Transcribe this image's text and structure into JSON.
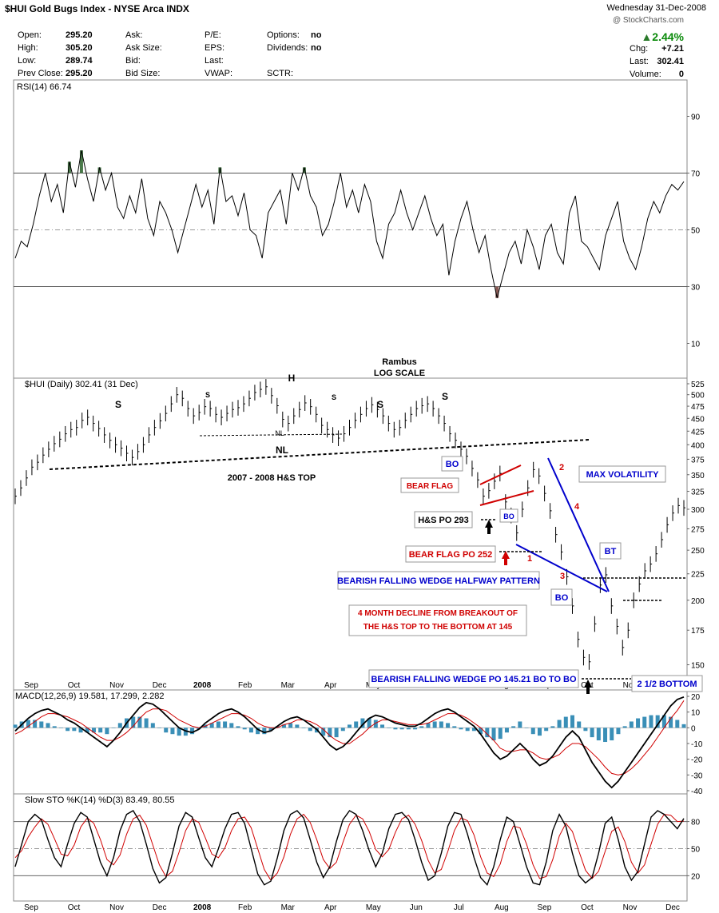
{
  "header": {
    "title": "$HUI Gold Bugs Index - NYSE Arca INDX",
    "date": "Wednesday 31-Dec-2008",
    "change_pct": "2.44%",
    "watermark": "@ StockCharts.com",
    "quote_rows": [
      [
        [
          "Open:",
          "295.20"
        ],
        [
          "Ask:",
          ""
        ],
        [
          "P/E:",
          ""
        ],
        [
          "Options:",
          "no"
        ]
      ],
      [
        [
          "High:",
          "305.20"
        ],
        [
          "Ask Size:",
          ""
        ],
        [
          "EPS:",
          ""
        ],
        [
          "Dividends:",
          "no"
        ]
      ],
      [
        [
          "Low:",
          "289.74"
        ],
        [
          "Bid:",
          ""
        ],
        [
          "Last:",
          ""
        ],
        [
          "",
          ""
        ]
      ],
      [
        [
          "Prev Close:",
          "295.20"
        ],
        [
          "Bid Size:",
          ""
        ],
        [
          "VWAP:",
          ""
        ],
        [
          "SCTR:",
          ""
        ]
      ]
    ],
    "right_rows": [
      [
        "Chg:",
        "+7.21"
      ],
      [
        "Last:",
        "302.41"
      ],
      [
        "Volume:",
        "0"
      ]
    ]
  },
  "chart_data": [
    {
      "type": "line",
      "panel": "rsi",
      "title": "RSI(14) 66.74",
      "ylim": [
        0,
        100
      ],
      "ticks": [
        10,
        30,
        50,
        70,
        90
      ],
      "reference_lines": [
        30,
        50,
        70
      ],
      "series": [
        {
          "name": "RSI(14)",
          "values": [
            40,
            46,
            44,
            52,
            62,
            70,
            60,
            66,
            56,
            74,
            65,
            78,
            68,
            60,
            72,
            64,
            70,
            58,
            54,
            62,
            56,
            68,
            54,
            48,
            60,
            56,
            50,
            42,
            50,
            58,
            66,
            58,
            64,
            52,
            72,
            60,
            62,
            55,
            63,
            50,
            48,
            40,
            56,
            60,
            64,
            52,
            70,
            64,
            72,
            62,
            58,
            48,
            52,
            60,
            70,
            58,
            64,
            56,
            66,
            60,
            46,
            40,
            52,
            56,
            64,
            56,
            50,
            56,
            62,
            54,
            48,
            52,
            34,
            46,
            54,
            60,
            50,
            42,
            48,
            36,
            26,
            34,
            42,
            46,
            38,
            50,
            44,
            36,
            48,
            52,
            42,
            38,
            56,
            62,
            46,
            44,
            40,
            36,
            48,
            54,
            60,
            46,
            40,
            36,
            44,
            54,
            60,
            56,
            62,
            66,
            64,
            67
          ]
        }
      ],
      "notes": [
        "Rambus",
        "LOG SCALE"
      ]
    },
    {
      "type": "line",
      "panel": "price",
      "title": "$HUI (Daily) 302.41 (31 Dec)",
      "scale": "log",
      "ylim": [
        145,
        525
      ],
      "ticks": [
        150,
        175,
        200,
        225,
        250,
        275,
        300,
        325,
        350,
        375,
        400,
        425,
        450,
        475,
        500,
        525
      ],
      "x_labels": [
        "Sep",
        "Oct",
        "Nov",
        "Dec",
        "2008",
        "Feb",
        "Mar",
        "Apr",
        "May",
        "Jun",
        "Jul",
        "Aug",
        "Sep",
        "Oct",
        "Nov",
        "Dec"
      ],
      "series": [
        {
          "name": "$HUI",
          "values": [
            318,
            330,
            345,
            362,
            370,
            382,
            392,
            402,
            410,
            420,
            428,
            432,
            446,
            452,
            440,
            430,
            418,
            408,
            400,
            394,
            385,
            378,
            388,
            400,
            418,
            432,
            445,
            460,
            480,
            500,
            492,
            470,
            455,
            462,
            474,
            470,
            458,
            452,
            460,
            468,
            472,
            480,
            492,
            505,
            512,
            518,
            498,
            476,
            448,
            440,
            455,
            468,
            482,
            474,
            458,
            436,
            428,
            418,
            412,
            420,
            432,
            446,
            458,
            470,
            478,
            468,
            455,
            440,
            428,
            432,
            446,
            458,
            470,
            476,
            480,
            470,
            455,
            440,
            420,
            408,
            392,
            380,
            360,
            342,
            318,
            326,
            340,
            352,
            310,
            292,
            270,
            300,
            330,
            358,
            348,
            322,
            298,
            268,
            248,
            222,
            195,
            168,
            155,
            152,
            180,
            214,
            224,
            195,
            178,
            162,
            175,
            200,
            215,
            228,
            235,
            246,
            262,
            280,
            295,
            305,
            302
          ]
        }
      ],
      "annotations": [
        "S",
        "S",
        "H",
        "S",
        "S",
        "S",
        "NL",
        "NL",
        "2007 - 2008 H&S TOP",
        "BO",
        "BEAR FLAG",
        "BO",
        "H&S PO 293",
        "BEAR FLAG PO 252",
        "1",
        "2",
        "3",
        "4",
        "MAX VOLATILITY",
        "BT",
        "BO",
        "BEARISH FALLING WEDGE HALFWAY PATTERN",
        "4 MONTH DECLINE FROM BREAKOUT OF",
        "THE H&S TOP TO THE BOTTOM AT 145",
        "BEARISH FALLING WEDGE PO 145.21 BO TO BO",
        "2 1/2 BOTTOM"
      ]
    },
    {
      "type": "line",
      "panel": "macd",
      "title": "MACD(12,26,9) 19.581, 17.299, 2.282",
      "ylim": [
        -40,
        20
      ],
      "ticks": [
        20,
        10,
        0,
        -10,
        -20,
        -30,
        -40
      ],
      "series": [
        {
          "name": "MACD",
          "values": [
            -2,
            2,
            6,
            9,
            11,
            12,
            10,
            8,
            5,
            3,
            0,
            -3,
            -6,
            -9,
            -12,
            -8,
            -3,
            3,
            8,
            13,
            16,
            15,
            12,
            8,
            4,
            0,
            -2,
            -3,
            -1,
            3,
            6,
            9,
            11,
            12,
            10,
            7,
            3,
            -1,
            -3,
            -2,
            1,
            4,
            6,
            7,
            5,
            2,
            -1,
            -6,
            -11,
            -14,
            -12,
            -8,
            -3,
            2,
            6,
            8,
            7,
            5,
            3,
            2,
            1,
            1,
            3,
            6,
            9,
            11,
            12,
            10,
            7,
            4,
            1,
            -4,
            -10,
            -16,
            -20,
            -18,
            -14,
            -10,
            -14,
            -20,
            -24,
            -22,
            -18,
            -12,
            -6,
            -2,
            -6,
            -14,
            -22,
            -28,
            -34,
            -38,
            -34,
            -28,
            -22,
            -16,
            -10,
            -4,
            2,
            8,
            14,
            18,
            19.581
          ]
        },
        {
          "name": "Signal",
          "values": [
            -4,
            -2,
            1,
            4,
            7,
            9,
            9,
            8,
            7,
            5,
            3,
            0,
            -3,
            -6,
            -8,
            -8,
            -6,
            -3,
            1,
            6,
            10,
            12,
            12,
            11,
            8,
            5,
            3,
            1,
            0,
            1,
            3,
            5,
            7,
            9,
            9,
            8,
            6,
            3,
            1,
            0,
            0,
            2,
            3,
            5,
            5,
            4,
            2,
            -1,
            -5,
            -8,
            -10,
            -10,
            -7,
            -4,
            0,
            3,
            5,
            5,
            4,
            3,
            2,
            2,
            2,
            3,
            5,
            7,
            9,
            9,
            8,
            6,
            3,
            0,
            -4,
            -8,
            -13,
            -15,
            -15,
            -14,
            -14,
            -16,
            -19,
            -20,
            -19,
            -17,
            -13,
            -10,
            -10,
            -12,
            -16,
            -20,
            -25,
            -29,
            -30,
            -29,
            -26,
            -22,
            -17,
            -12,
            -6,
            0,
            6,
            11,
            17.299
          ]
        },
        {
          "name": "Histogram",
          "values": [
            2,
            4,
            5,
            5,
            4,
            3,
            1,
            0,
            -2,
            -2,
            -3,
            -3,
            -3,
            -3,
            -4,
            0,
            3,
            6,
            7,
            7,
            6,
            3,
            0,
            -3,
            -4,
            -5,
            -5,
            -4,
            -1,
            2,
            3,
            4,
            4,
            3,
            1,
            -1,
            -3,
            -4,
            -4,
            -2,
            1,
            2,
            3,
            2,
            0,
            -2,
            -3,
            -5,
            -6,
            -6,
            -2,
            2,
            4,
            6,
            6,
            5,
            2,
            0,
            -1,
            -1,
            -1,
            -1,
            1,
            3,
            4,
            4,
            3,
            1,
            -1,
            -2,
            -2,
            -4,
            -6,
            -8,
            -7,
            -3,
            1,
            4,
            0,
            -4,
            -5,
            -2,
            1,
            5,
            7,
            8,
            4,
            -2,
            -6,
            -8,
            -9,
            -8,
            -4,
            1,
            4,
            6,
            7,
            8,
            8,
            8,
            7,
            5,
            2.282
          ]
        }
      ]
    },
    {
      "type": "line",
      "panel": "stochastic",
      "title": "Slow STO %K(14) %D(3) 83.49, 80.55",
      "ylim": [
        0,
        100
      ],
      "ticks": [
        20,
        50,
        80
      ],
      "x_labels": [
        "Sep",
        "Oct",
        "Nov",
        "Dec",
        "2008",
        "Feb",
        "Mar",
        "Apr",
        "May",
        "Jun",
        "Jul",
        "Aug",
        "Sep",
        "Oct",
        "Nov",
        "Dec"
      ],
      "series": [
        {
          "name": "%K(14)",
          "values": [
            30,
            55,
            80,
            88,
            82,
            60,
            40,
            30,
            55,
            78,
            90,
            85,
            60,
            35,
            20,
            40,
            70,
            88,
            92,
            80,
            55,
            28,
            12,
            18,
            45,
            75,
            90,
            85,
            62,
            40,
            30,
            50,
            72,
            88,
            90,
            78,
            50,
            22,
            10,
            14,
            40,
            70,
            88,
            92,
            84,
            60,
            35,
            18,
            30,
            58,
            82,
            92,
            88,
            70,
            48,
            30,
            45,
            72,
            88,
            90,
            82,
            60,
            35,
            15,
            20,
            45,
            75,
            90,
            88,
            66,
            40,
            18,
            10,
            30,
            60,
            85,
            80,
            55,
            30,
            12,
            10,
            35,
            70,
            88,
            75,
            45,
            20,
            12,
            18,
            45,
            78,
            85,
            60,
            30,
            15,
            25,
            55,
            85,
            92,
            88,
            80,
            72,
            83.49
          ]
        },
        {
          "name": "%D(3)",
          "values": [
            40,
            48,
            63,
            74,
            83,
            77,
            61,
            44,
            42,
            54,
            74,
            84,
            78,
            60,
            38,
            32,
            43,
            66,
            83,
            87,
            76,
            54,
            32,
            19,
            25,
            46,
            70,
            83,
            79,
            62,
            44,
            40,
            51,
            70,
            83,
            85,
            73,
            50,
            27,
            15,
            23,
            41,
            66,
            83,
            88,
            79,
            60,
            38,
            28,
            35,
            57,
            77,
            87,
            83,
            69,
            49,
            41,
            49,
            68,
            83,
            87,
            77,
            59,
            37,
            23,
            27,
            47,
            70,
            84,
            81,
            65,
            41,
            23,
            19,
            33,
            58,
            75,
            73,
            55,
            32,
            17,
            19,
            38,
            64,
            78,
            69,
            47,
            26,
            17,
            25,
            47,
            69,
            74,
            58,
            35,
            23,
            32,
            55,
            77,
            88,
            87,
            80,
            80.55
          ]
        }
      ]
    }
  ],
  "colors": {
    "price": "#000000",
    "macd_signal": "#d00000",
    "macd_histogram": "#3a8fb7",
    "sto_d": "#d00000",
    "red_annotation": "#d00000",
    "blue_annotation": "#0000cc",
    "rsi_fill_over": "#4a7a4a",
    "rsi_fill_under": "#8a5a55"
  }
}
